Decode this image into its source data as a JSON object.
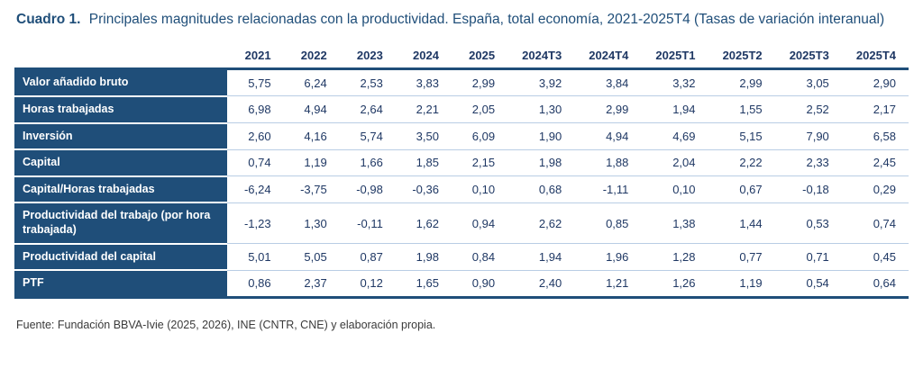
{
  "title": {
    "label": "Cuadro 1.",
    "text": "Principales magnitudes relacionadas con la productividad. España, total economía, 2021-2025T4  (Tasas de variación interanual)"
  },
  "table": {
    "columns": [
      "2021",
      "2022",
      "2023",
      "2024",
      "2025",
      "2024T3",
      "2024T4",
      "2025T1",
      "2025T2",
      "2025T3",
      "2025T4"
    ],
    "rows": [
      {
        "label": "Valor añadido bruto",
        "values": [
          "5,75",
          "6,24",
          "2,53",
          "3,83",
          "2,99",
          "3,92",
          "3,84",
          "3,32",
          "2,99",
          "3,05",
          "2,90"
        ]
      },
      {
        "label": "Horas trabajadas",
        "values": [
          "6,98",
          "4,94",
          "2,64",
          "2,21",
          "2,05",
          "1,30",
          "2,99",
          "1,94",
          "1,55",
          "2,52",
          "2,17"
        ]
      },
      {
        "label": "Inversión",
        "values": [
          "2,60",
          "4,16",
          "5,74",
          "3,50",
          "6,09",
          "1,90",
          "4,94",
          "4,69",
          "5,15",
          "7,90",
          "6,58"
        ]
      },
      {
        "label": "Capital",
        "values": [
          "0,74",
          "1,19",
          "1,66",
          "1,85",
          "2,15",
          "1,98",
          "1,88",
          "2,04",
          "2,22",
          "2,33",
          "2,45"
        ]
      },
      {
        "label": "Capital/Horas  trabajadas",
        "values": [
          "-6,24",
          "-3,75",
          "-0,98",
          "-0,36",
          "0,10",
          "0,68",
          "-1,11",
          "0,10",
          "0,67",
          "-0,18",
          "0,29"
        ]
      },
      {
        "label": "Productividad del trabajo (por hora trabajada)",
        "values": [
          "-1,23",
          "1,30",
          "-0,11",
          "1,62",
          "0,94",
          "2,62",
          "0,85",
          "1,38",
          "1,44",
          "0,53",
          "0,74"
        ]
      },
      {
        "label": "Productividad del capital",
        "values": [
          "5,01",
          "5,05",
          "0,87",
          "1,98",
          "0,84",
          "1,94",
          "1,96",
          "1,28",
          "0,77",
          "0,71",
          "0,45"
        ]
      },
      {
        "label": "PTF",
        "values": [
          "0,86",
          "2,37",
          "0,12",
          "1,65",
          "0,90",
          "2,40",
          "1,21",
          "1,26",
          "1,19",
          "0,54",
          "0,64"
        ]
      }
    ]
  },
  "footer": {
    "source": "Fuente: Fundación BBVA-Ivie (2025, 2026), INE (CNTR, CNE) y elaboración propia."
  },
  "colors": {
    "header_navy": "#1F4E79",
    "text_navy": "#1F3864",
    "row_separator": "#b9cde4",
    "row_label_text": "#ffffff",
    "source_text": "#3a3a3a",
    "background": "#ffffff"
  }
}
